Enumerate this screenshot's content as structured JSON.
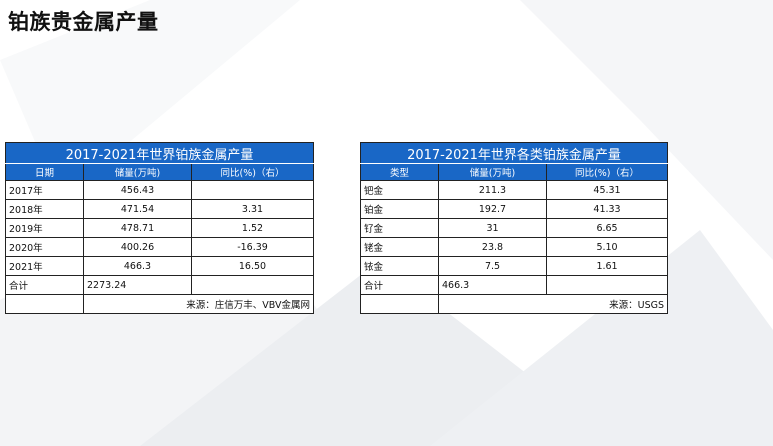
{
  "page": {
    "title": "铂族贵金属产量"
  },
  "table_production": {
    "title": "2017-2021年世界铂族金属产量",
    "headers": [
      "日期",
      "储量(万吨)",
      "同比(%)（右）"
    ],
    "rows": [
      [
        "2017年",
        "456.43",
        ""
      ],
      [
        "2018年",
        "471.54",
        "3.31"
      ],
      [
        "2019年",
        "478.71",
        "1.52"
      ],
      [
        "2020年",
        "400.26",
        "-16.39"
      ],
      [
        "2021年",
        "466.3",
        "16.50"
      ],
      [
        "合计",
        "2273.24",
        ""
      ]
    ],
    "source": "来源：庄信万丰、VBV金属网"
  },
  "table_types": {
    "title": "2017-2021年世界各类铂族金属产量",
    "headers": [
      "类型",
      "储量(万吨)",
      "同比(%)（右）"
    ],
    "rows": [
      [
        "钯金",
        "211.3",
        "45.31"
      ],
      [
        "铂金",
        "192.7",
        "41.33"
      ],
      [
        "钌金",
        "31",
        "6.65"
      ],
      [
        "铑金",
        "23.8",
        "5.10"
      ],
      [
        "铱金",
        "7.5",
        "1.61"
      ],
      [
        "合计",
        "466.3",
        ""
      ]
    ],
    "source": "来源：USGS"
  }
}
